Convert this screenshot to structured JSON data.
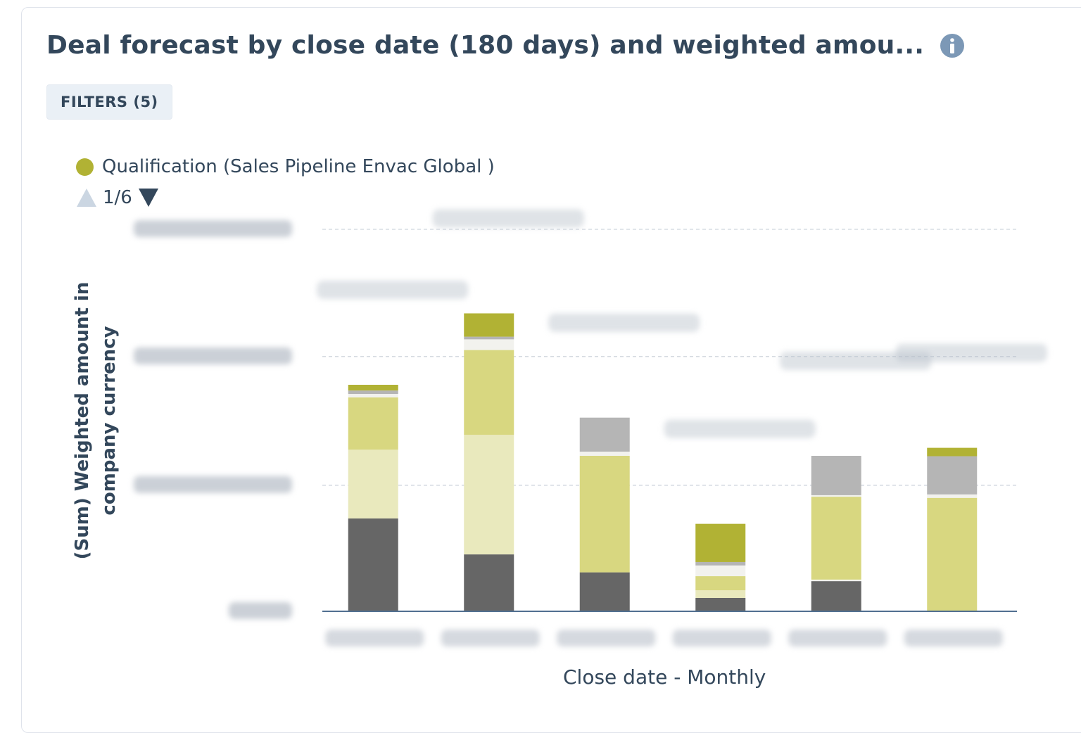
{
  "header": {
    "title": "Deal forecast by close date (180 days) and weighted amou...",
    "info_icon": "info-icon"
  },
  "toolbar": {
    "filters_label": "FILTERS (5)"
  },
  "legend": {
    "label": "Qualification (Sales Pipeline Envac Global )",
    "color": "#b1b234",
    "pager": "1/6"
  },
  "chart_data": {
    "type": "bar",
    "stacked": true,
    "title": "Deal forecast by close date (180 days) and weighted amou...",
    "xlabel": "Close date - Monthly",
    "ylabel_lines": [
      "(Sum) Weighted amount in",
      "company currency"
    ],
    "ylim": [
      0,
      1.0
    ],
    "y_ticks": [
      0,
      0.33,
      0.667,
      1.0
    ],
    "grid": true,
    "legend_position": "top-left",
    "labels_obscured": true,
    "categories": [
      "",
      "",
      "",
      "",
      "",
      ""
    ],
    "series": [
      {
        "color": "#666666",
        "values": [
          0.243,
          0.149,
          0.102,
          0.035,
          0.079,
          0
        ]
      },
      {
        "color": "#f2f2ee",
        "values": [
          0,
          0,
          0,
          0,
          0.004,
          0
        ]
      },
      {
        "color": "#e9e9bd",
        "values": [
          0.18,
          0.313,
          0,
          0.02,
          0,
          0
        ]
      },
      {
        "color": "#d8d780",
        "values": [
          0.137,
          0.222,
          0.305,
          0.037,
          0.217,
          0.297
        ]
      },
      {
        "color": "#f2f2ee",
        "values": [
          0.009,
          0.028,
          0.011,
          0.028,
          0.004,
          0.009
        ]
      },
      {
        "color": "#b5b5b5",
        "values": [
          0.009,
          0.007,
          0.089,
          0.009,
          0.103,
          0.1
        ]
      },
      {
        "color": "#b1b234",
        "values": [
          0.015,
          0.061,
          0,
          0.1,
          0,
          0.022
        ]
      }
    ]
  }
}
